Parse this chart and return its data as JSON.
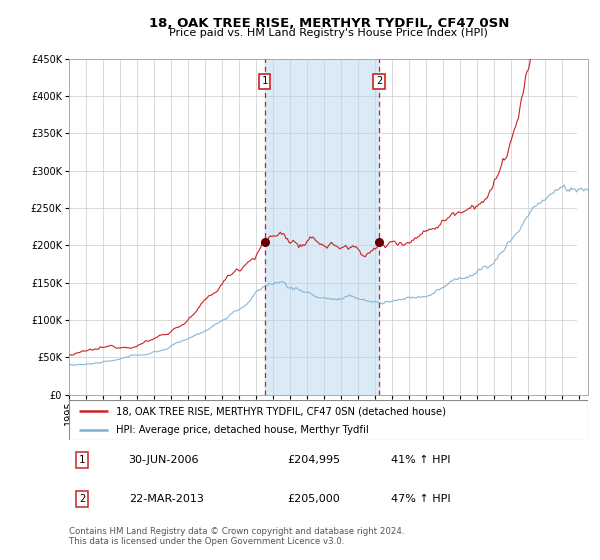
{
  "title": "18, OAK TREE RISE, MERTHYR TYDFIL, CF47 0SN",
  "subtitle": "Price paid vs. HM Land Registry's House Price Index (HPI)",
  "legend_line1": "18, OAK TREE RISE, MERTHYR TYDFIL, CF47 0SN (detached house)",
  "legend_line2": "HPI: Average price, detached house, Merthyr Tydfil",
  "sale1_date": "30-JUN-2006",
  "sale1_price": 204995,
  "sale1_pct": "41%",
  "sale2_date": "22-MAR-2013",
  "sale2_price": 205000,
  "sale2_pct": "47%",
  "footnote": "Contains HM Land Registry data © Crown copyright and database right 2024.\nThis data is licensed under the Open Government Licence v3.0.",
  "hpi_color": "#7bafd4",
  "price_color": "#cc2222",
  "sale_marker_color": "#660000",
  "vline_color": "#cc2222",
  "shade_color": "#dbeaf7",
  "ylim": [
    0,
    450000
  ],
  "xlim_start": 1995.0,
  "xlim_end": 2025.5,
  "sale1_x": 2006.5,
  "sale2_x": 2013.22,
  "shade_start": 2006.5,
  "shade_end": 2013.22,
  "hatch_start": 2024.83
}
